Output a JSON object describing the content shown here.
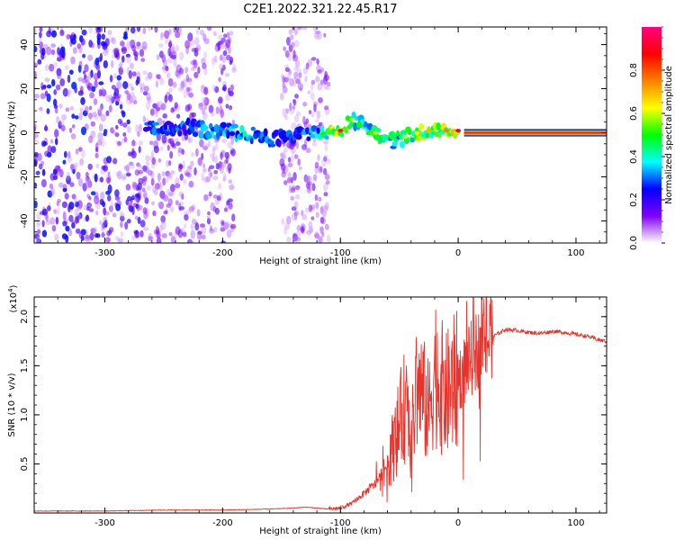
{
  "title": "C2E1.2022.321.22.45.R17",
  "chart_data": [
    {
      "type": "heatmap",
      "xlabel": "Height of straight line (km)",
      "ylabel": "Frequency (Hz)",
      "xlim": [
        -360,
        126
      ],
      "ylim": [
        -50,
        48
      ],
      "xticks": [
        -300,
        -200,
        -100,
        0,
        100
      ],
      "yticks": [
        -40,
        -20,
        0,
        20,
        40
      ],
      "colorbar": {
        "label": "Normalized spectral amplitude",
        "range": [
          0,
          1
        ],
        "ticks": [
          0.0,
          0.2,
          0.4,
          0.6,
          0.8
        ],
        "colormap": [
          "#ffffff",
          "#8000ff",
          "#0000ff",
          "#00ffff",
          "#00ff00",
          "#ffff00",
          "#ff8000",
          "#ff0000",
          "#ff0080"
        ]
      },
      "noise_regions": [
        {
          "x": [
            -360,
            -270
          ],
          "y": [
            -50,
            48
          ],
          "amplitude": 0.25
        },
        {
          "x": [
            -270,
            -190
          ],
          "y": [
            -50,
            48
          ],
          "amplitude": 0.15
        },
        {
          "x": [
            -150,
            -110
          ],
          "y": [
            -50,
            48
          ],
          "amplitude": 0.12
        }
      ],
      "signal_trace": [
        {
          "x": -265,
          "y": 2,
          "amplitude": 0.3
        },
        {
          "x": -240,
          "y": 3,
          "amplitude": 0.3
        },
        {
          "x": -210,
          "y": 1,
          "amplitude": 0.35
        },
        {
          "x": -180,
          "y": 0,
          "amplitude": 0.4
        },
        {
          "x": -160,
          "y": -3,
          "amplitude": 0.3
        },
        {
          "x": -140,
          "y": -1,
          "amplitude": 0.3
        },
        {
          "x": -120,
          "y": 0,
          "amplitude": 0.35
        },
        {
          "x": -100,
          "y": 1,
          "amplitude": 0.75
        },
        {
          "x": -90,
          "y": 6,
          "amplitude": 0.5
        },
        {
          "x": -80,
          "y": 4,
          "amplitude": 0.45
        },
        {
          "x": -70,
          "y": 0,
          "amplitude": 0.5
        },
        {
          "x": -55,
          "y": -4,
          "amplitude": 0.45
        },
        {
          "x": -45,
          "y": -2,
          "amplitude": 0.5
        },
        {
          "x": -35,
          "y": 0,
          "amplitude": 0.55
        },
        {
          "x": -25,
          "y": 1,
          "amplitude": 0.6
        },
        {
          "x": -10,
          "y": 1,
          "amplitude": 0.65
        },
        {
          "x": 0,
          "y": 1,
          "amplitude": 0.8
        }
      ],
      "steady_line": {
        "x": [
          5,
          126
        ],
        "y": 0,
        "amplitude": 0.9
      }
    },
    {
      "type": "line",
      "xlabel": "Height of straight line (km)",
      "ylabel": "SNR (10 * v/v)",
      "y_multiplier": "(x10",
      "y_multiplier_exp": "4",
      "y_multiplier_close": ")",
      "xlim": [
        -360,
        126
      ],
      "ylim": [
        0,
        2.2
      ],
      "xticks": [
        -300,
        -200,
        -100,
        0,
        100
      ],
      "yticks": [
        0.5,
        1.0,
        1.5,
        2.0
      ],
      "color": "#e8322a",
      "x": [
        -360,
        -300,
        -250,
        -200,
        -160,
        -140,
        -130,
        -120,
        -110,
        -100,
        -90,
        -80,
        -70,
        -60,
        -50,
        -45,
        -40,
        -35,
        -30,
        -25,
        -20,
        -15,
        -10,
        -5,
        0,
        5,
        10,
        15,
        20,
        30,
        40,
        50,
        60,
        70,
        80,
        90,
        100,
        110,
        120,
        126
      ],
      "y": [
        0.02,
        0.02,
        0.03,
        0.03,
        0.04,
        0.05,
        0.06,
        0.05,
        0.04,
        0.05,
        0.1,
        0.2,
        0.3,
        0.5,
        0.9,
        1.1,
        0.7,
        1.3,
        1.2,
        1.0,
        1.5,
        1.3,
        1.2,
        1.3,
        1.35,
        1.45,
        1.55,
        1.65,
        1.72,
        1.8,
        1.87,
        1.86,
        1.84,
        1.83,
        1.85,
        1.84,
        1.82,
        1.8,
        1.76,
        1.75
      ]
    }
  ]
}
